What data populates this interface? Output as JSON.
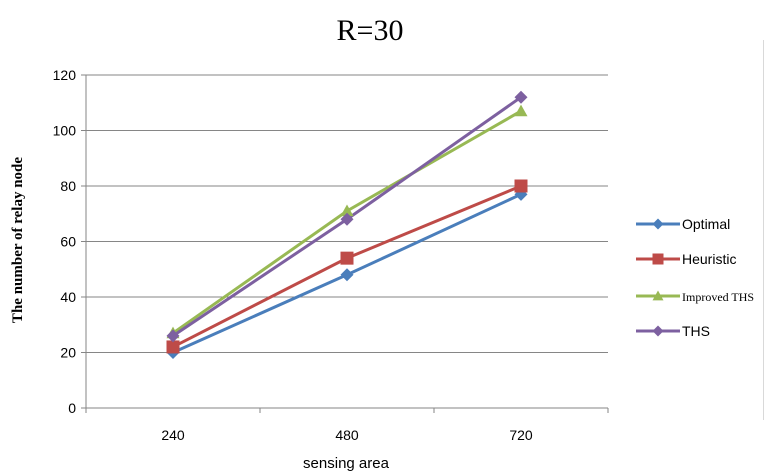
{
  "chart_data": {
    "type": "line",
    "title": "R=30",
    "xlabel": "sensing area",
    "ylabel": "The number of relay node",
    "categories": [
      "240",
      "480",
      "720"
    ],
    "ylim": [
      0,
      120
    ],
    "yticks": [
      0,
      20,
      40,
      60,
      80,
      100,
      120
    ],
    "grid": true,
    "legend_position": "right",
    "series": [
      {
        "name": "Optimal",
        "values": [
          20,
          48,
          77
        ],
        "color": "#4a7ebb",
        "marker": "diamond"
      },
      {
        "name": "Heuristic",
        "values": [
          22,
          54,
          80
        ],
        "color": "#be4b48",
        "marker": "square"
      },
      {
        "name": "Improved THS",
        "values": [
          27,
          71,
          107
        ],
        "color": "#98b954",
        "marker": "triangle"
      },
      {
        "name": "THS",
        "values": [
          26,
          68,
          112
        ],
        "color": "#7d60a0",
        "marker": "diamond"
      }
    ]
  }
}
